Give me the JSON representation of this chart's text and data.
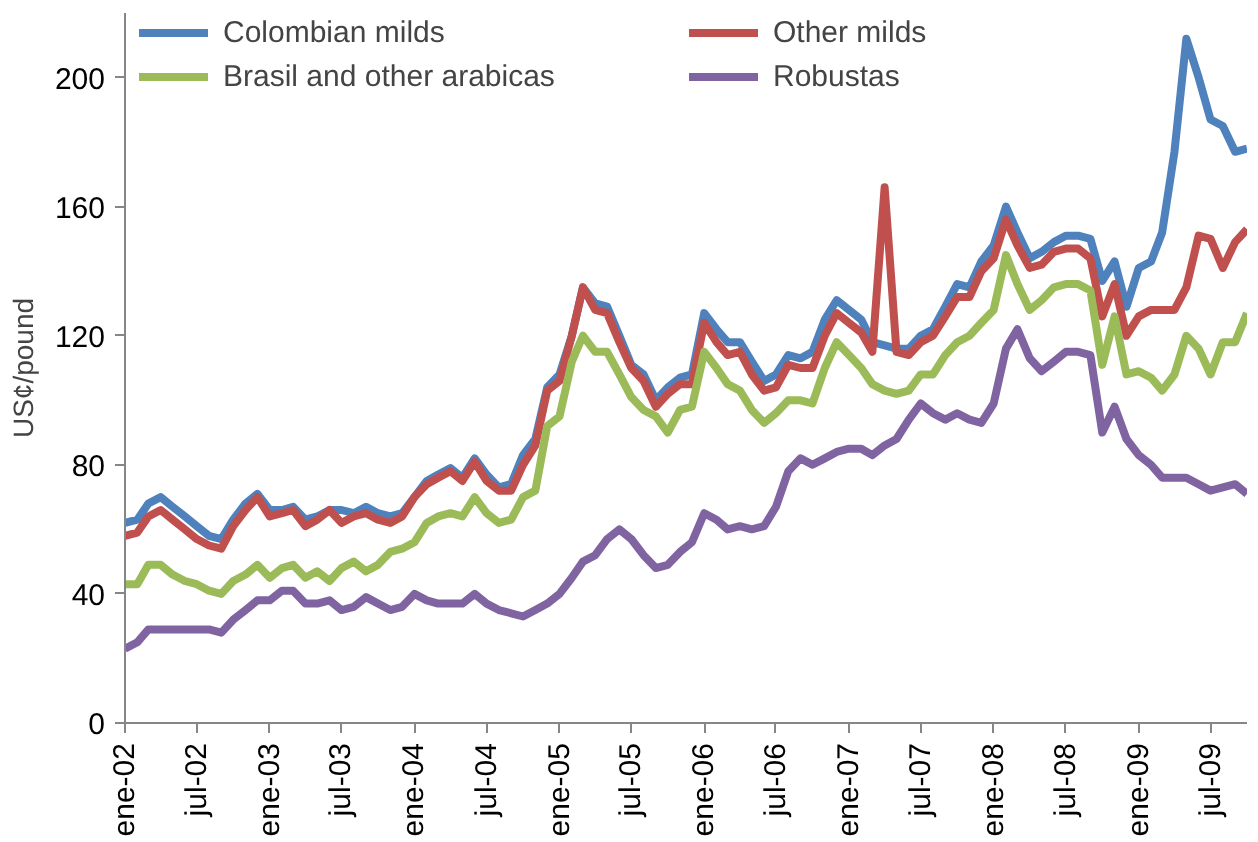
{
  "chart_data": {
    "type": "line",
    "ylabel": "US¢/pound",
    "x": [
      "2002-01",
      "2002-02",
      "2002-03",
      "2002-04",
      "2002-05",
      "2002-06",
      "2002-07",
      "2002-08",
      "2002-09",
      "2002-10",
      "2002-11",
      "2002-12",
      "2003-01",
      "2003-02",
      "2003-03",
      "2003-04",
      "2003-05",
      "2003-06",
      "2003-07",
      "2003-08",
      "2003-09",
      "2003-10",
      "2003-11",
      "2003-12",
      "2004-01",
      "2004-02",
      "2004-03",
      "2004-04",
      "2004-05",
      "2004-06",
      "2004-07",
      "2004-08",
      "2004-09",
      "2004-10",
      "2004-11",
      "2004-12",
      "2005-01",
      "2005-02",
      "2005-03",
      "2005-04",
      "2005-05",
      "2005-06",
      "2005-07",
      "2005-08",
      "2005-09",
      "2005-10",
      "2005-11",
      "2005-12",
      "2006-01",
      "2006-02",
      "2006-03",
      "2006-04",
      "2006-05",
      "2006-06",
      "2006-07",
      "2006-08",
      "2006-09",
      "2006-10",
      "2006-11",
      "2006-12",
      "2007-01",
      "2007-02",
      "2007-03",
      "2007-04",
      "2007-05",
      "2007-06",
      "2007-07",
      "2007-08",
      "2007-09",
      "2007-10",
      "2007-11",
      "2007-12",
      "2008-01",
      "2008-02",
      "2008-03",
      "2008-04",
      "2008-05",
      "2008-06",
      "2008-07",
      "2008-08",
      "2008-09",
      "2008-10",
      "2008-11",
      "2008-12",
      "2009-01",
      "2009-02",
      "2009-03",
      "2009-04",
      "2009-05",
      "2009-06",
      "2009-07",
      "2009-08",
      "2009-09",
      "2009-10"
    ],
    "legend": "top",
    "grid": false,
    "marker": "none",
    "line_style": "solid",
    "ylim": [
      0,
      220
    ],
    "yticks": [
      0,
      40,
      80,
      120,
      160,
      200
    ],
    "xlim": [
      "2002-01",
      "2009-10"
    ],
    "xticks": [
      {
        "value": "2002-01",
        "label": "ene-02"
      },
      {
        "value": "2002-07",
        "label": "jul-02"
      },
      {
        "value": "2003-01",
        "label": "ene-03"
      },
      {
        "value": "2003-07",
        "label": "jul-03"
      },
      {
        "value": "2004-01",
        "label": "ene-04"
      },
      {
        "value": "2004-07",
        "label": "jul-04"
      },
      {
        "value": "2005-01",
        "label": "ene-05"
      },
      {
        "value": "2005-07",
        "label": "jul-05"
      },
      {
        "value": "2006-01",
        "label": "ene-06"
      },
      {
        "value": "2006-07",
        "label": "jul-06"
      },
      {
        "value": "2007-01",
        "label": "ene-07"
      },
      {
        "value": "2007-07",
        "label": "jul-07"
      },
      {
        "value": "2008-01",
        "label": "ene-08"
      },
      {
        "value": "2008-07",
        "label": "jul-08"
      },
      {
        "value": "2009-01",
        "label": "ene-09"
      },
      {
        "value": "2009-07",
        "label": "jul-09"
      }
    ],
    "series": [
      {
        "name": "Colombian milds",
        "color": "#4f81bd",
        "values": [
          62,
          63,
          68,
          70,
          67,
          64,
          61,
          58,
          57,
          63,
          68,
          71,
          66,
          66,
          67,
          63,
          64,
          66,
          66,
          65,
          67,
          65,
          64,
          65,
          70,
          75,
          77,
          79,
          76,
          82,
          77,
          73,
          74,
          83,
          88,
          104,
          108,
          120,
          135,
          130,
          129,
          120,
          111,
          108,
          100,
          104,
          107,
          108,
          127,
          122,
          118,
          118,
          112,
          106,
          108,
          114,
          113,
          115,
          125,
          131,
          128,
          125,
          118,
          117,
          116,
          116,
          120,
          122,
          129,
          136,
          135,
          143,
          148,
          160,
          152,
          144,
          146,
          149,
          151,
          151,
          150,
          137,
          143,
          129,
          141,
          143,
          152,
          177,
          212,
          200,
          187,
          185,
          177,
          178
        ]
      },
      {
        "name": "Other milds",
        "color": "#c0504d",
        "values": [
          58,
          59,
          64,
          66,
          63,
          60,
          57,
          55,
          54,
          61,
          66,
          70,
          64,
          65,
          66,
          61,
          63,
          66,
          62,
          64,
          65,
          63,
          62,
          64,
          70,
          74,
          76,
          78,
          75,
          81,
          75,
          72,
          72,
          80,
          86,
          103,
          106,
          120,
          135,
          128,
          127,
          118,
          110,
          106,
          98,
          102,
          105,
          105,
          124,
          118,
          114,
          115,
          108,
          103,
          104,
          111,
          110,
          110,
          120,
          127,
          124,
          121,
          115,
          166,
          115,
          114,
          118,
          120,
          126,
          132,
          132,
          140,
          144,
          156,
          148,
          141,
          142,
          146,
          147,
          147,
          144,
          126,
          136,
          120,
          126,
          128,
          128,
          128,
          135,
          151,
          150,
          141,
          149,
          153
        ]
      },
      {
        "name": "Brasil and other arabicas",
        "color": "#9bbb59",
        "values": [
          43,
          43,
          49,
          49,
          46,
          44,
          43,
          41,
          40,
          44,
          46,
          49,
          45,
          48,
          49,
          45,
          47,
          44,
          48,
          50,
          47,
          49,
          53,
          54,
          56,
          62,
          64,
          65,
          64,
          70,
          65,
          62,
          63,
          70,
          72,
          92,
          95,
          112,
          120,
          115,
          115,
          108,
          101,
          97,
          95,
          90,
          97,
          98,
          115,
          110,
          105,
          103,
          97,
          93,
          96,
          100,
          100,
          99,
          110,
          118,
          114,
          110,
          105,
          103,
          102,
          103,
          108,
          108,
          114,
          118,
          120,
          124,
          128,
          145,
          136,
          128,
          131,
          135,
          136,
          136,
          134,
          111,
          126,
          108,
          109,
          107,
          103,
          108,
          120,
          116,
          108,
          118,
          118,
          127
        ]
      },
      {
        "name": "Robustas",
        "color": "#8064a2",
        "values": [
          23,
          25,
          29,
          29,
          29,
          29,
          29,
          29,
          28,
          32,
          35,
          38,
          38,
          41,
          41,
          37,
          37,
          38,
          35,
          36,
          39,
          37,
          35,
          36,
          40,
          38,
          37,
          37,
          37,
          40,
          37,
          35,
          34,
          33,
          35,
          37,
          40,
          45,
          50,
          52,
          57,
          60,
          57,
          52,
          48,
          49,
          53,
          56,
          65,
          63,
          60,
          61,
          60,
          61,
          67,
          78,
          82,
          80,
          82,
          84,
          85,
          85,
          83,
          86,
          88,
          94,
          99,
          96,
          94,
          96,
          94,
          93,
          99,
          116,
          122,
          113,
          109,
          112,
          115,
          115,
          114,
          90,
          98,
          88,
          83,
          80,
          76,
          76,
          76,
          74,
          72,
          73,
          74,
          71
        ]
      }
    ]
  }
}
